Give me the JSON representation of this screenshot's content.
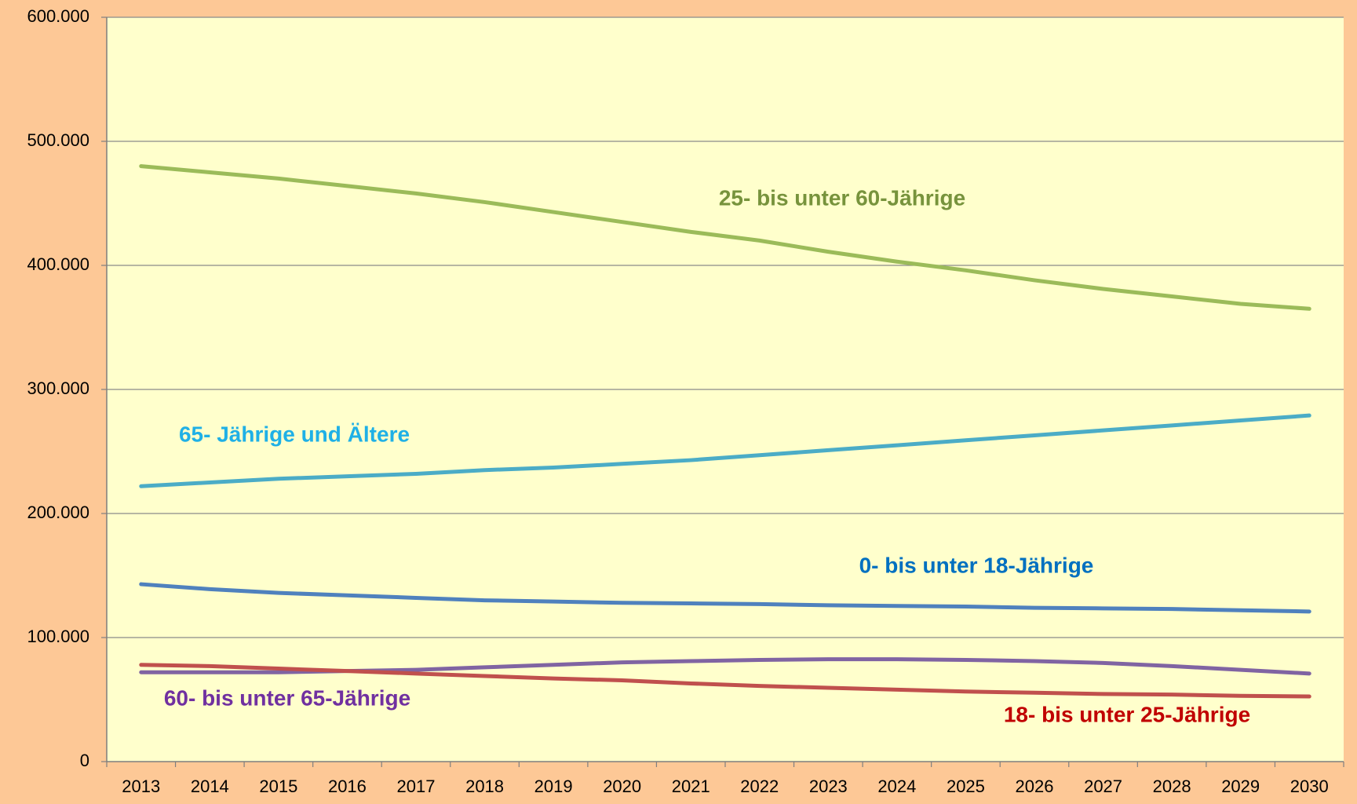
{
  "chart_data": {
    "type": "line",
    "categories": [
      "2013",
      "2014",
      "2015",
      "2016",
      "2017",
      "2018",
      "2019",
      "2020",
      "2021",
      "2022",
      "2023",
      "2024",
      "2025",
      "2026",
      "2027",
      "2028",
      "2029",
      "2030"
    ],
    "ylim": [
      0,
      600000
    ],
    "yticks": [
      0,
      {
        "value": 100000,
        "label": "100.000"
      },
      {
        "value": 200000,
        "label": "200.000"
      },
      {
        "value": 300000,
        "label": "300.000"
      },
      {
        "value": 400000,
        "label": "400.000"
      },
      {
        "value": 500000,
        "label": "500.000"
      },
      {
        "value": 600000,
        "label": "600.000"
      }
    ],
    "grid": true,
    "series": [
      {
        "name": "25- bis unter 60-Jährige",
        "color": "#9bbb59",
        "label_color": "#77933c",
        "values": [
          480000,
          475000,
          470000,
          464000,
          458000,
          451000,
          443000,
          435000,
          427000,
          420000,
          411000,
          403000,
          396000,
          388000,
          381000,
          375000,
          369000,
          365000
        ]
      },
      {
        "name": "65- Jährige und Ältere",
        "color": "#4bacc6",
        "label_color": "#1fb0e6",
        "values": [
          222000,
          225000,
          228000,
          230000,
          232000,
          235000,
          237000,
          240000,
          243000,
          247000,
          251000,
          255000,
          259000,
          263000,
          267000,
          271000,
          275000,
          279000
        ]
      },
      {
        "name": "0- bis unter 18-Jährige",
        "color": "#4f81bd",
        "label_color": "#0070c0",
        "values": [
          143000,
          139000,
          136000,
          134000,
          132000,
          130000,
          129000,
          128000,
          127500,
          127000,
          126000,
          125500,
          125000,
          124000,
          123500,
          123000,
          122000,
          121000
        ]
      },
      {
        "name": "60- bis unter 65-Jährige",
        "color": "#8064a2",
        "label_color": "#7030a0",
        "values": [
          72000,
          72000,
          72000,
          73000,
          74000,
          76000,
          78000,
          80000,
          81000,
          82000,
          82500,
          82500,
          82000,
          81000,
          79500,
          77000,
          74000,
          71000
        ]
      },
      {
        "name": "18- bis unter 25-Jährige",
        "color": "#c0504d",
        "label_color": "#c00000",
        "values": [
          78000,
          77000,
          75000,
          73000,
          71000,
          69000,
          67000,
          65500,
          63000,
          61000,
          59500,
          58000,
          56500,
          55500,
          54500,
          54000,
          53000,
          52500
        ]
      }
    ]
  }
}
